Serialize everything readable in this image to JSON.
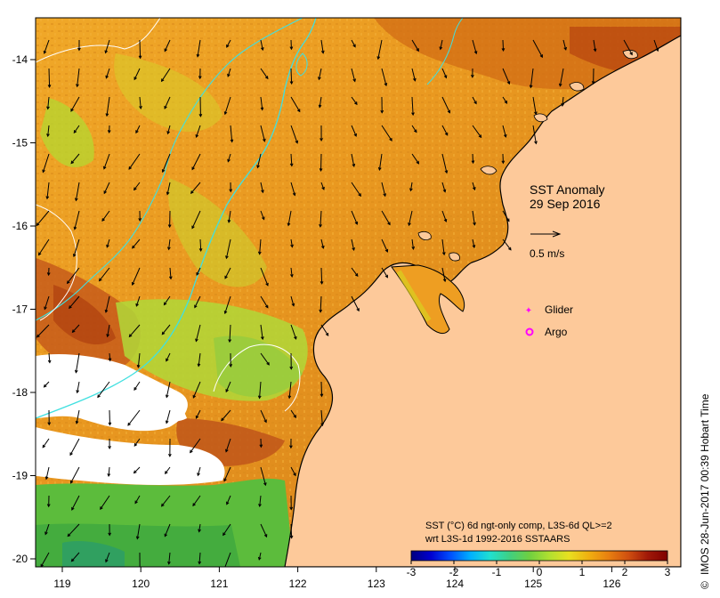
{
  "map": {
    "title": "SST Anomaly",
    "date": "29 Sep 2016",
    "scale_vector_label": "0.5 m/s",
    "x_ticks": [
      "119",
      "120",
      "121",
      "122",
      "123",
      "124",
      "125",
      "126"
    ],
    "y_ticks": [
      "-14",
      "-15",
      "-16",
      "-17",
      "-18",
      "-19",
      "-20"
    ],
    "legend": {
      "glider_label": "Glider",
      "argo_label": "Argo",
      "glider_color": "#ff00ff",
      "argo_color": "#ff00ff"
    },
    "colorbar": {
      "caption_line1": "SST (°C) 6d ngt-only comp, L3S-6d QL>=2",
      "caption_line2": "wrt L3S-1d 1992-2016 SSTAARS",
      "tick_labels": [
        "-3",
        "-2",
        "-1",
        "0",
        "1",
        "2",
        "3"
      ],
      "colors": [
        "#00007f",
        "#0000d0",
        "#0050ff",
        "#00b0ff",
        "#20e0d0",
        "#40d080",
        "#70d040",
        "#b0e030",
        "#e8e020",
        "#f0b010",
        "#e88010",
        "#d05010",
        "#a01808",
        "#7f0000"
      ]
    },
    "credit": "IMOS 28-Jun-2017 00:39 Hobart Time",
    "copyright_symbol": "©",
    "colors": {
      "land": "#fdc99a",
      "contour_cyan": "#40e0e0",
      "contour_white": "#ffffff",
      "sea_orange": "#eea21d",
      "sea_deep": "#c85a12",
      "sea_green": "#a0d838",
      "sea_shelf": "#44b040"
    }
  }
}
